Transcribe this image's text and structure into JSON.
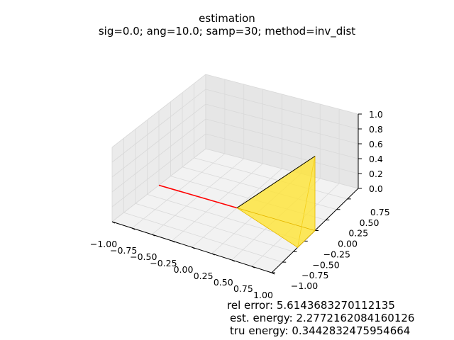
{
  "chart_data": {
    "type": "3d-line-surface",
    "title": "estimation",
    "subtitle": "sig=0.0; ang=10.0; samp=30; method=inv_dist",
    "x_ticks": [
      "−1.00",
      "−0.75",
      "−0.50",
      "−0.25",
      "0.00",
      "0.25",
      "0.50",
      "0.75",
      "1.00"
    ],
    "y_ticks": [
      "−1.00",
      "−0.75",
      "−0.50",
      "−0.25",
      "0.00",
      "0.25",
      "0.50",
      "0.75"
    ],
    "z_ticks": [
      "0.0",
      "0.2",
      "0.4",
      "0.6",
      "0.8",
      "1.0"
    ],
    "xlim": [
      -1.0,
      1.0
    ],
    "ylim": [
      -1.0,
      1.0
    ],
    "zlim": [
      0.0,
      1.0
    ],
    "grid": true,
    "series": [
      {
        "type": "line",
        "color": "#ff0000",
        "x": [
          -1.0,
          0.0
        ],
        "y": [
          0.0,
          0.0
        ],
        "z": [
          0.0,
          0.0
        ]
      },
      {
        "type": "surface",
        "color": "#ffe433",
        "vertices": [
          [
            0.0,
            0.0,
            0.0
          ],
          [
            1.0,
            0.0,
            1.0
          ],
          [
            1.0,
            0.0,
            0.0
          ],
          [
            1.0,
            -0.4,
            0.0
          ]
        ]
      }
    ],
    "annotations": [
      "rel error: 5.6143683270112135",
      "est. energy: 2.2772162084160126",
      "tru energy: 0.3442832475954664"
    ]
  },
  "colors": {
    "pane": "#f2f2f2",
    "grid": "#d9d9d9",
    "line": "#ff0000",
    "surface": "#ffe433",
    "surface_edge": "#e6b800"
  }
}
